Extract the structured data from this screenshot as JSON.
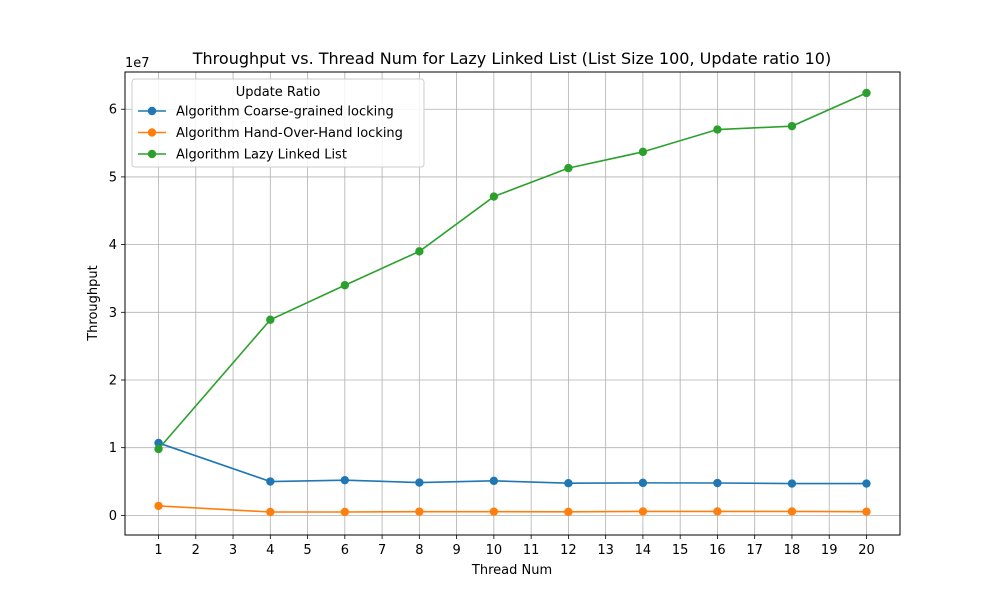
{
  "chart_data": {
    "type": "line",
    "title": "Throughput vs. Thread Num for Lazy Linked List  (List Size 100, Update ratio 10)",
    "xlabel": "Thread Num",
    "ylabel": "Throughput",
    "y_offset_label": "1e7",
    "y_scale_multiplier": 10000000,
    "xlim": [
      0.1,
      20.9
    ],
    "ylim": [
      -2900000,
      65500000
    ],
    "x_ticks": [
      1,
      2,
      3,
      4,
      5,
      6,
      7,
      8,
      9,
      10,
      11,
      12,
      13,
      14,
      15,
      16,
      17,
      18,
      19,
      20
    ],
    "y_ticks": [
      0,
      10000000,
      20000000,
      30000000,
      40000000,
      50000000,
      60000000
    ],
    "y_tick_labels": [
      "0",
      "1",
      "2",
      "3",
      "4",
      "5",
      "6"
    ],
    "grid": true,
    "legend": {
      "title": "Update Ratio",
      "placement": "top-left"
    },
    "x": [
      1,
      4,
      6,
      8,
      10,
      12,
      14,
      16,
      18,
      20
    ],
    "series": [
      {
        "name": "Algorithm Coarse-grained locking",
        "color": "#1f77b4",
        "values": [
          10700000,
          5000000,
          5200000,
          4850000,
          5100000,
          4750000,
          4800000,
          4780000,
          4700000,
          4700000
        ]
      },
      {
        "name": "Algorithm Hand-Over-Hand locking",
        "color": "#ff7f0e",
        "values": [
          1400000,
          500000,
          500000,
          550000,
          550000,
          520000,
          580000,
          580000,
          580000,
          540000
        ]
      },
      {
        "name": "Algorithm Lazy Linked List",
        "color": "#2ca02c",
        "values": [
          9800000,
          28900000,
          34000000,
          39000000,
          47100000,
          51300000,
          53700000,
          57000000,
          57500000,
          62400000
        ]
      }
    ]
  }
}
